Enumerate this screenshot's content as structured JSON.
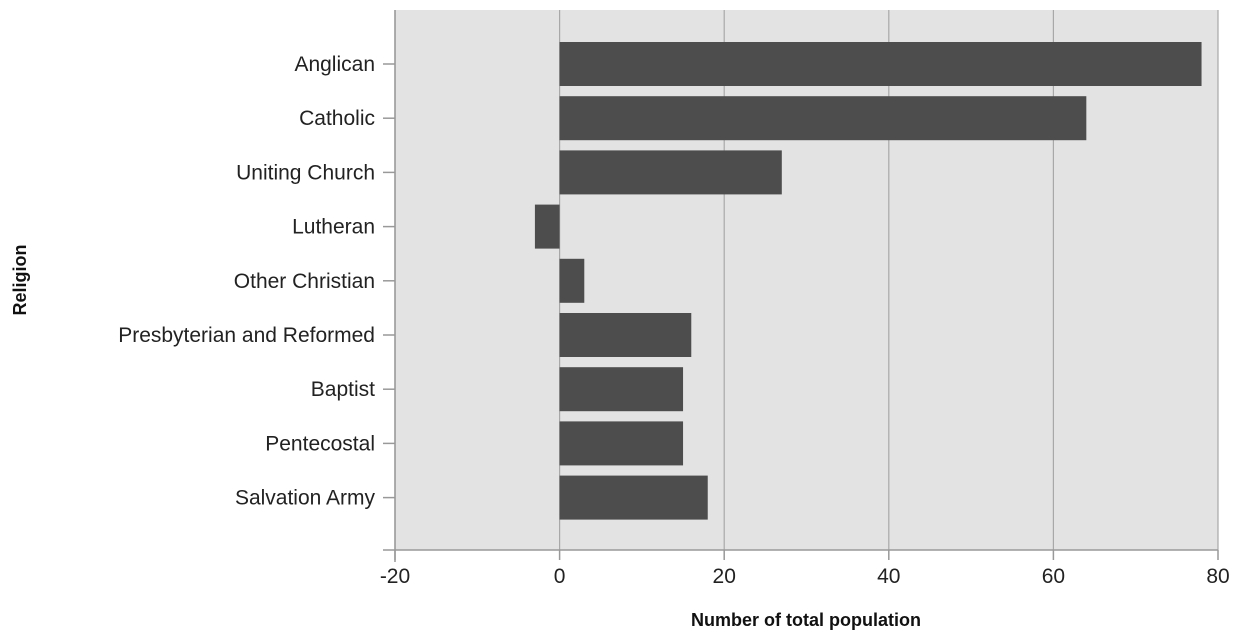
{
  "chart_data": {
    "type": "bar",
    "orientation": "horizontal",
    "categories": [
      "Anglican",
      "Catholic",
      "Uniting Church",
      "Lutheran",
      "Other Christian",
      "Presbyterian and Reformed",
      "Baptist",
      "Pentecostal",
      "Salvation Army"
    ],
    "values": [
      78,
      64,
      27,
      -3,
      3,
      16,
      15,
      15,
      18
    ],
    "xlabel": "Number of total population",
    "ylabel": "Religion",
    "xlim": [
      -20,
      80
    ],
    "xticks": [
      "-20",
      "0",
      "20",
      "40",
      "60",
      "80"
    ],
    "grid": "vertical",
    "legend": "none",
    "colors": {
      "bar": "#4d4d4d",
      "plot_background": "#e3e3e3",
      "gridline": "#a8a8a8"
    }
  }
}
